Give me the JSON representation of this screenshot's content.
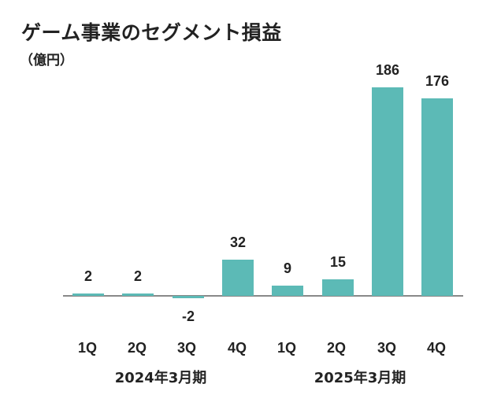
{
  "title": "ゲーム事業のセグメント損益",
  "unit": "（億円）",
  "colors": {
    "bar": "#5cbab6",
    "axis": "#888888",
    "text": "#222222"
  },
  "chart_data": {
    "type": "bar",
    "title": "ゲーム事業のセグメント損益",
    "ylabel": "（億円）",
    "xlabel": "",
    "categories": [
      "1Q",
      "2Q",
      "3Q",
      "4Q",
      "1Q",
      "2Q",
      "3Q",
      "4Q"
    ],
    "groups": [
      {
        "label": "2024年3月期",
        "categories": [
          "1Q",
          "2Q",
          "3Q",
          "4Q"
        ]
      },
      {
        "label": "2025年3月期",
        "categories": [
          "1Q",
          "2Q",
          "3Q",
          "4Q"
        ]
      }
    ],
    "values": [
      2,
      2,
      -2,
      32,
      9,
      15,
      186,
      176
    ],
    "value_labels": [
      "2",
      "2",
      "-2",
      "32",
      "9",
      "15",
      "186",
      "176"
    ],
    "ylim": [
      -5,
      200
    ],
    "grid": false,
    "legend": null
  }
}
